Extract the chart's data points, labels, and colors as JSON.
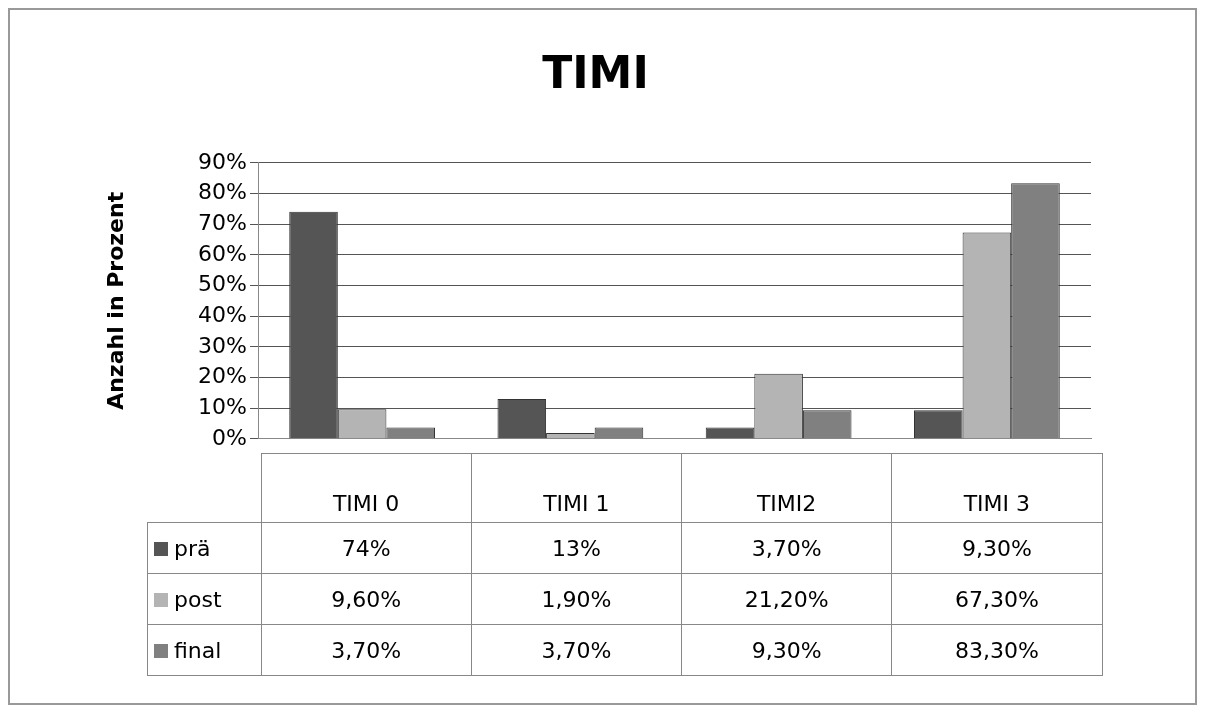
{
  "chart_data": {
    "type": "bar",
    "title": "TIMI",
    "ylabel": "Anzahl in Prozent",
    "categories": [
      "TIMI 0",
      "TIMI 1",
      "TIMI2",
      "TIMI 3"
    ],
    "series": [
      {
        "name": "prä",
        "color": "#555555",
        "values": [
          74,
          13,
          3.7,
          9.3
        ],
        "value_labels": [
          "74%",
          "13%",
          "3,70%",
          "9,30%"
        ]
      },
      {
        "name": "post",
        "color": "#b4b4b4",
        "values": [
          9.6,
          1.9,
          21.2,
          67.3
        ],
        "value_labels": [
          "9,60%",
          "1,90%",
          "21,20%",
          "67,30%"
        ]
      },
      {
        "name": "final",
        "color": "#808080",
        "values": [
          3.7,
          3.7,
          9.3,
          83.3
        ],
        "value_labels": [
          "3,70%",
          "3,70%",
          "9,30%",
          "83,30%"
        ]
      }
    ],
    "ylim": [
      0,
      90
    ],
    "yticks": [
      {
        "value": 0,
        "label": "0%"
      },
      {
        "value": 10,
        "label": "10%"
      },
      {
        "value": 20,
        "label": "20%"
      },
      {
        "value": 30,
        "label": "30%"
      },
      {
        "value": 40,
        "label": "40%"
      },
      {
        "value": 50,
        "label": "50%"
      },
      {
        "value": 60,
        "label": "60%"
      },
      {
        "value": 70,
        "label": "70%"
      },
      {
        "value": 80,
        "label": "80%"
      },
      {
        "value": 90,
        "label": "90%"
      }
    ],
    "grid": "y",
    "legend": "bottom"
  }
}
